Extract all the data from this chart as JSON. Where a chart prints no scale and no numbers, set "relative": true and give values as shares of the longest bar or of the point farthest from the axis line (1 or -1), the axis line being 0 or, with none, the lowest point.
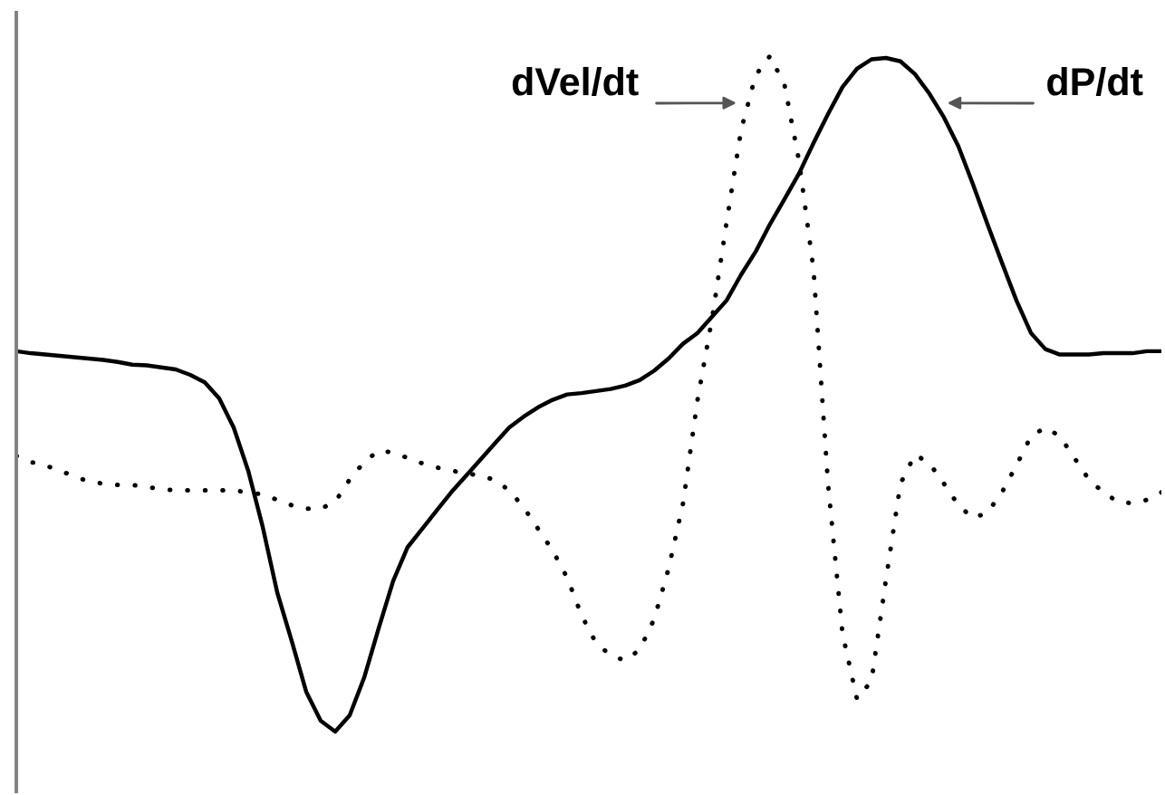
{
  "chart_data": {
    "type": "line",
    "relative": true,
    "categories": [
      null,
      null,
      null,
      null,
      null,
      null,
      null,
      null,
      null,
      null,
      null,
      null,
      null,
      null,
      null,
      null,
      null,
      null,
      null,
      null,
      null,
      null,
      null,
      null,
      null,
      null,
      null,
      null,
      null,
      null,
      null,
      null,
      null,
      null,
      null,
      null,
      null,
      null,
      null,
      null,
      null,
      null,
      null,
      null,
      null,
      null,
      null,
      null,
      null,
      null,
      null,
      null,
      null,
      null,
      null,
      null,
      null,
      null,
      null,
      null,
      null,
      null,
      null,
      null,
      null,
      null,
      null,
      null,
      null,
      null,
      null,
      null,
      null,
      null,
      null,
      null,
      null,
      null,
      null,
      null
    ],
    "series": [
      {
        "name": "dVel/dt",
        "color": "#000000",
        "line_style": "dotted",
        "values": [
          0.408,
          0.399,
          0.394,
          0.386,
          0.378,
          0.37,
          0.367,
          0.365,
          0.365,
          0.362,
          0.359,
          0.357,
          0.357,
          0.357,
          0.357,
          0.357,
          0.354,
          0.351,
          0.343,
          0.335,
          0.33,
          0.33,
          0.34,
          0.373,
          0.399,
          0.416,
          0.413,
          0.405,
          0.397,
          0.391,
          0.386,
          0.383,
          0.378,
          0.373,
          0.357,
          0.332,
          0.3,
          0.268,
          0.228,
          0.172,
          0.131,
          0.113,
          0.105,
          0.121,
          0.166,
          0.241,
          0.338,
          0.491,
          0.611,
          0.753,
          0.89,
          0.971,
          1,
          0.957,
          0.845,
          0.684,
          0.367,
          0.145,
          0.048,
          0.075,
          0.225,
          0.367,
          0.41,
          0.397,
          0.367,
          0.335,
          0.316,
          0.324,
          0.354,
          0.394,
          0.437,
          0.45,
          0.437,
          0.405,
          0.373,
          0.354,
          0.34,
          0.338,
          0.343,
          0.354
        ]
      },
      {
        "name": "dP/dt",
        "color": "#000000",
        "line_style": "solid",
        "values": [
          0.563,
          0.56,
          0.558,
          0.556,
          0.554,
          0.552,
          0.55,
          0.547,
          0.543,
          0.542,
          0.539,
          0.536,
          0.528,
          0.517,
          0.493,
          0.45,
          0.386,
          0.303,
          0.206,
          0.134,
          0.059,
          0.016,
          0,
          0.024,
          0.08,
          0.153,
          0.223,
          0.273,
          0.3,
          0.327,
          0.354,
          0.378,
          0.402,
          0.426,
          0.45,
          0.466,
          0.48,
          0.491,
          0.499,
          0.501,
          0.504,
          0.507,
          0.512,
          0.52,
          0.534,
          0.552,
          0.574,
          0.59,
          0.614,
          0.638,
          0.676,
          0.71,
          0.751,
          0.788,
          0.826,
          0.871,
          0.914,
          0.954,
          0.981,
          0.995,
          0.997,
          0.992,
          0.973,
          0.944,
          0.909,
          0.866,
          0.81,
          0.751,
          0.694,
          0.638,
          0.59,
          0.566,
          0.558,
          0.558,
          0.558,
          0.56,
          0.56,
          0.56,
          0.563,
          0.563
        ]
      }
    ]
  }
}
